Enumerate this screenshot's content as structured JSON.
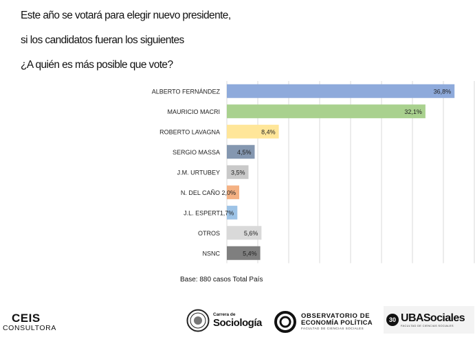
{
  "question": {
    "line1": "Este año se votará para elegir nuevo presidente,",
    "line2": "si los candidatos fueran los siguientes",
    "line3": "¿A quién es más posible que vote?"
  },
  "chart_data": {
    "type": "bar",
    "orientation": "horizontal",
    "categories": [
      "ALBERTO FERNÁNDEZ",
      "MAURICIO MACRI",
      "ROBERTO LAVAGNA",
      "SERGIO MASSA",
      "J.M. URTUBEY",
      "N. DEL CAÑO",
      "J.L. ESPERT",
      "OTROS",
      "NSNC"
    ],
    "values": [
      36.8,
      32.1,
      8.4,
      4.5,
      3.5,
      2.0,
      1.7,
      5.6,
      5.4
    ],
    "value_labels": [
      "36,8%",
      "32,1%",
      "8,4%",
      "4,5%",
      "3,5%",
      "2,0%",
      "1,7%",
      "5,6%",
      "5,4%"
    ],
    "colors": [
      "#8eaadb",
      "#a9d18e",
      "#ffe699",
      "#8497b0",
      "#c9c9c9",
      "#f4b183",
      "#9dc3e6",
      "#d9d9d9",
      "#7f7f7f"
    ],
    "xlim": [
      0,
      40
    ],
    "grid": true,
    "legend": "none"
  },
  "footnote": "Base: 880 casos Total País",
  "logos": {
    "ceis": {
      "name": "CEIS",
      "sub": "CONSULTORA"
    },
    "sociologia": {
      "small": "Carrera de",
      "name": "Sociología"
    },
    "observatorio": {
      "line1": "OBSERVATORIO DE",
      "line2": "ECONOMÍA POLÍTICA",
      "line3": "FACULTAD DE CIENCIAS SOCIALES"
    },
    "uba": {
      "badge": "30",
      "name": "UBASociales",
      "sub": "FACULTAD DE CIENCIAS SOCIALES"
    }
  }
}
